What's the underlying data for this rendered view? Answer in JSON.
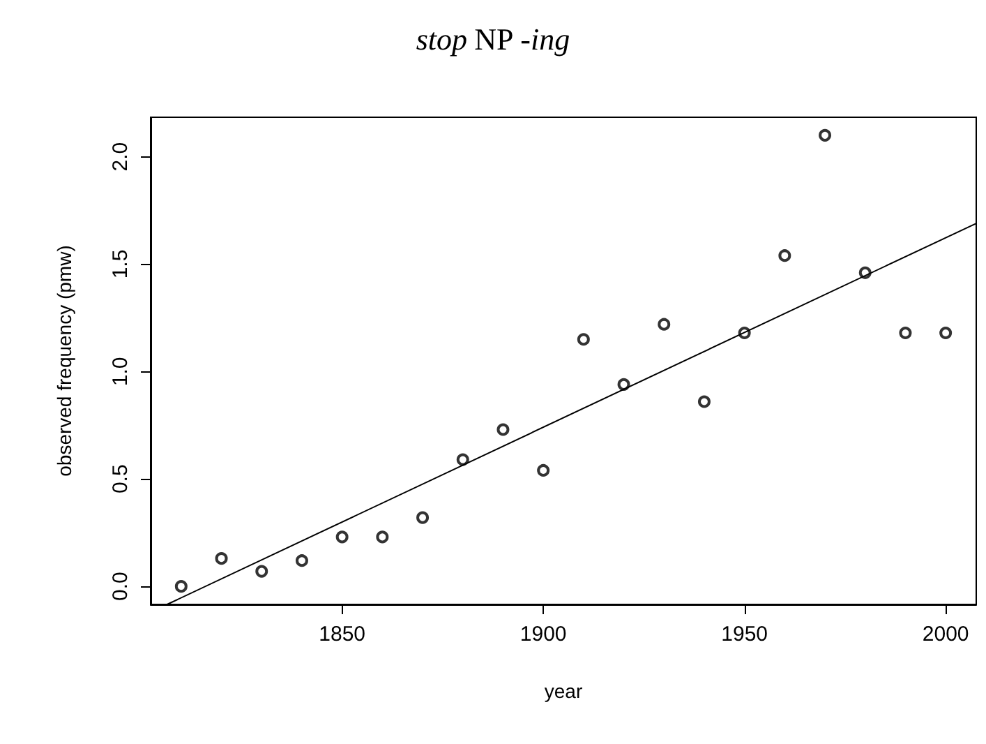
{
  "chart_data": {
    "type": "scatter",
    "title": "stop NP -ing",
    "xlabel": "year",
    "ylabel": "observed frequency (pmw)",
    "x": [
      1810,
      1820,
      1830,
      1840,
      1850,
      1860,
      1870,
      1880,
      1890,
      1900,
      1910,
      1920,
      1930,
      1940,
      1950,
      1960,
      1970,
      1980,
      1990,
      2000
    ],
    "series": [
      {
        "color": "#000000",
        "marker": "circle",
        "values": [
          0.0,
          0.13,
          0.07,
          0.12,
          0.23,
          0.23,
          0.32,
          0.59,
          0.73,
          0.54,
          1.15,
          0.94,
          1.22,
          0.86,
          1.18,
          1.54,
          2.1,
          1.46,
          1.18,
          1.18
        ]
      },
      {
        "type": "line",
        "color": "#000000",
        "marker": "none",
        "x": [
          1806.5,
          2007.6
        ],
        "values": [
          -0.084,
          1.69
        ]
      }
    ],
    "xlim": [
      1802.4,
      2007.6
    ],
    "ylim": [
      -0.084,
      2.184
    ],
    "xticks": [
      1850,
      1900,
      1950,
      2000
    ],
    "yticks": [
      {
        "value": 0,
        "label": "0.0"
      },
      0.5,
      {
        "value": 1,
        "label": "1.0"
      },
      1.5,
      {
        "value": 2,
        "label": "2.0"
      }
    ],
    "grid": false
  }
}
